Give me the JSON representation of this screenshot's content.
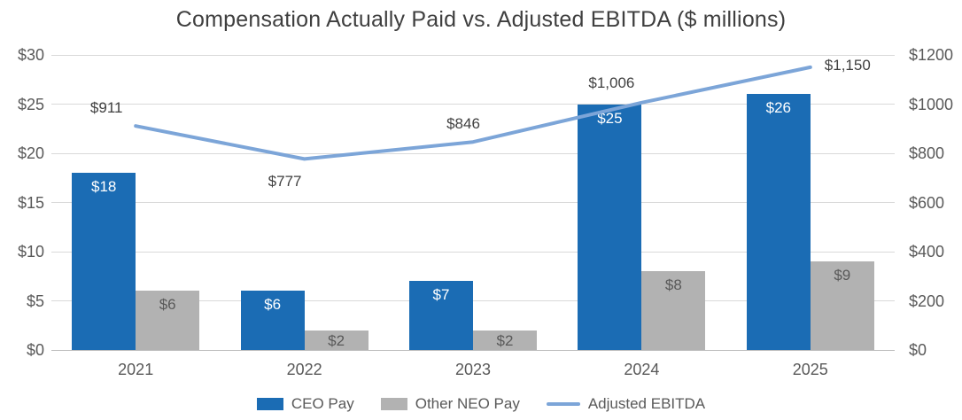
{
  "chart_data": {
    "type": "combo-bar-line",
    "title": "Compensation Actually Paid vs. Adjusted EBITDA ($ millions)",
    "categories": [
      "2021",
      "2022",
      "2023",
      "2024",
      "2025"
    ],
    "series": [
      {
        "name": "CEO Pay",
        "type": "bar",
        "axis": "left",
        "values": [
          18,
          6,
          7,
          25,
          26
        ],
        "labels": [
          "$18",
          "$6",
          "$7",
          "$25",
          "$26"
        ],
        "color": "#1b6cb4",
        "label_color": "#ffffff"
      },
      {
        "name": "Other NEO Pay",
        "type": "bar",
        "axis": "left",
        "values": [
          6,
          2,
          2,
          8,
          9
        ],
        "labels": [
          "$6",
          "$2",
          "$2",
          "$8",
          "$9"
        ],
        "color": "#b2b2b2",
        "label_color": "#595959"
      },
      {
        "name": "Adjusted EBITDA",
        "type": "line",
        "axis": "right",
        "values": [
          911,
          777,
          846,
          1006,
          1150
        ],
        "labels": [
          "$911",
          "$777",
          "$846",
          "$1,006",
          "$1,150"
        ],
        "label_positions": [
          "above",
          "below",
          "above",
          "above",
          "right"
        ],
        "color": "#7ca5d8"
      }
    ],
    "left_axis": {
      "min": 0,
      "max": 30,
      "ticks": [
        "$0",
        "$5",
        "$10",
        "$15",
        "$20",
        "$25",
        "$30"
      ]
    },
    "right_axis": {
      "min": 0,
      "max": 1200,
      "ticks": [
        "$0",
        "$200",
        "$400",
        "$600",
        "$800",
        "$1000",
        "$1200"
      ]
    },
    "grid": true,
    "legend_position": "bottom",
    "colors": {
      "title_text": "#3f3f3f",
      "axis_text": "#595959",
      "gridline": "#d9d9d9"
    }
  }
}
